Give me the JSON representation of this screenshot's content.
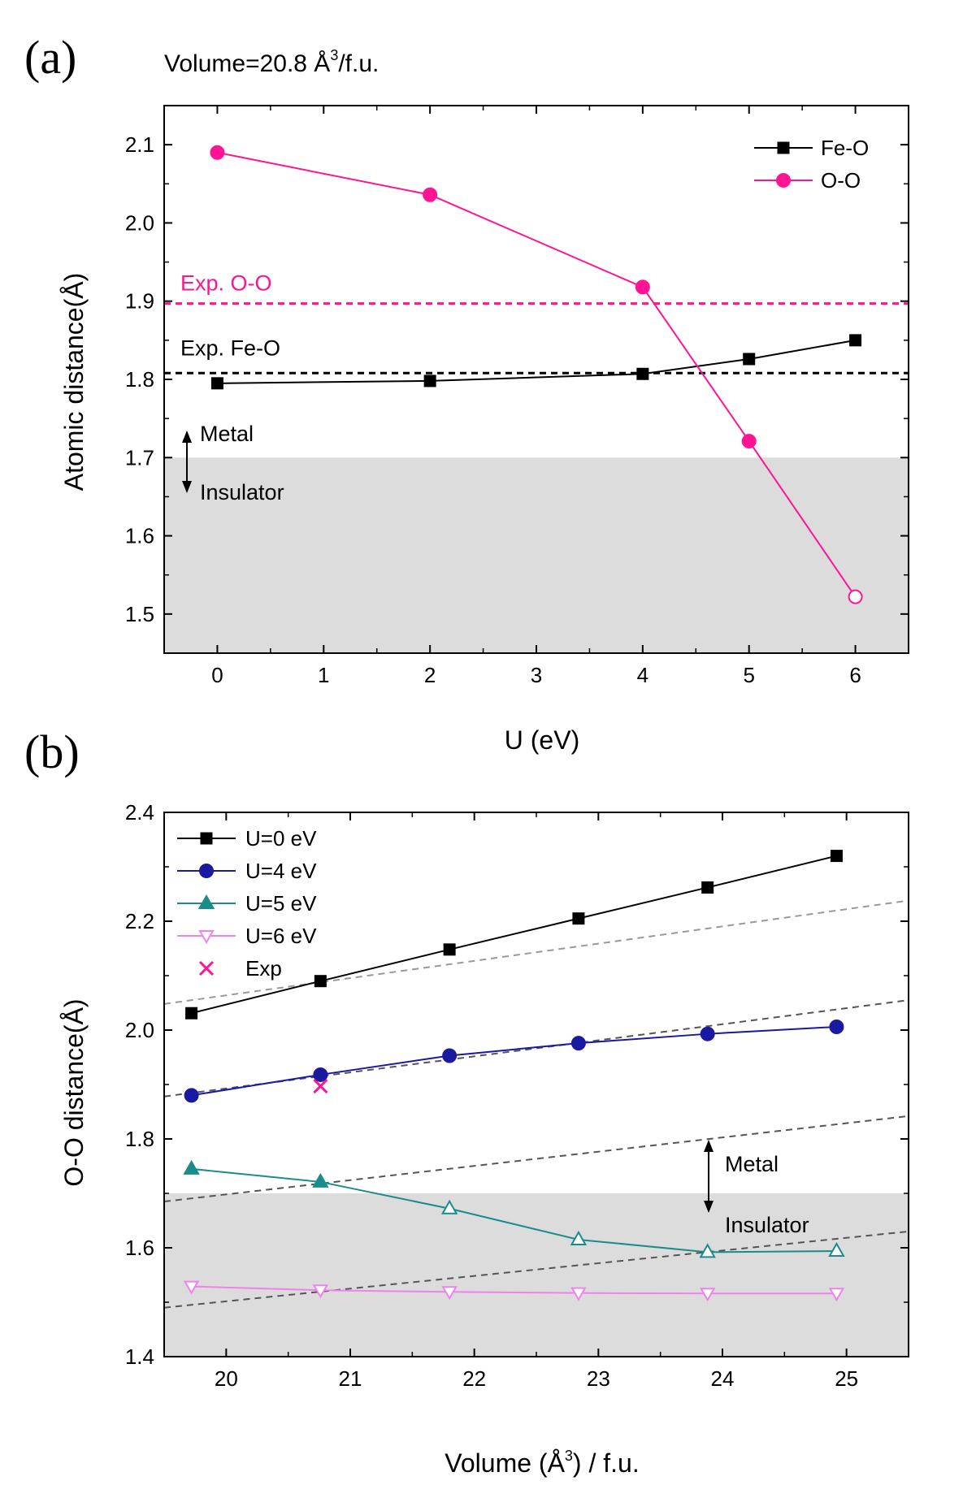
{
  "chart_data": [
    {
      "panel": "(a)",
      "type": "line",
      "subtitle_main": "Volume=20.8 Å",
      "subtitle_sup": "3",
      "subtitle_tail": "/f.u.",
      "xlabel": "U (eV)",
      "ylabel": "Atomic distance(Å)",
      "xlim": [
        -0.5,
        6.5
      ],
      "ylim": [
        1.45,
        2.15
      ],
      "xticks": [
        0,
        1,
        2,
        3,
        4,
        5,
        6
      ],
      "yticks": [
        "1.5",
        "1.6",
        "1.7",
        "1.8",
        "1.9",
        "2.0",
        "2.1"
      ],
      "shaded_region": {
        "from": 1.45,
        "to": 1.7,
        "color": "#dcdcdc"
      },
      "series": [
        {
          "name": "Fe-O",
          "color": "#000000",
          "marker": "square",
          "x": [
            0,
            2,
            4,
            5,
            6
          ],
          "y": [
            1.795,
            1.798,
            1.807,
            1.826,
            1.85
          ]
        },
        {
          "name": "O-O",
          "color": "#ff1493",
          "marker": "circle",
          "x": [
            0,
            2,
            4,
            5,
            6
          ],
          "y": [
            2.09,
            2.036,
            1.918,
            1.721,
            1.522
          ],
          "open_points": [
            4
          ]
        }
      ],
      "reference_lines": [
        {
          "label": "Exp. O-O",
          "y": 1.897,
          "color": "#ff1493"
        },
        {
          "label": "Exp. Fe-O",
          "y": 1.808,
          "color": "#000000"
        }
      ],
      "annotations": {
        "metal": "Metal",
        "insulator": "Insulator"
      }
    },
    {
      "panel": "(b)",
      "type": "line",
      "xlabel_main": "Volume (Å",
      "xlabel_sup": "3",
      "xlabel_tail": ") / f.u.",
      "ylabel": "O-O distance(Å)",
      "xlim": [
        19.5,
        25.5
      ],
      "ylim": [
        1.4,
        2.4
      ],
      "xticks": [
        20,
        21,
        22,
        23,
        24,
        25
      ],
      "yticks": [
        "1.4",
        "1.6",
        "1.8",
        "2.0",
        "2.2",
        "2.4"
      ],
      "shaded_region": {
        "from": 1.4,
        "to": 1.7,
        "color": "#dcdcdc"
      },
      "x": [
        19.72,
        20.76,
        21.8,
        22.84,
        23.88,
        24.92
      ],
      "series": [
        {
          "name": "U=0 eV",
          "color": "#000000",
          "marker": "square",
          "values": [
            2.031,
            2.09,
            2.148,
            2.205,
            2.262,
            2.32
          ]
        },
        {
          "name": "U=4 eV",
          "color": "#1a1aa0",
          "marker": "circle",
          "values": [
            1.88,
            1.918,
            1.953,
            1.976,
            1.993,
            2.006
          ]
        },
        {
          "name": "U=5 eV",
          "color": "#1a8c8c",
          "marker": "triangle-up",
          "values": [
            1.745,
            1.721,
            1.672,
            1.615,
            1.592,
            1.594
          ],
          "open_from_index": 2
        },
        {
          "name": "U=6 eV",
          "color": "#ee82ee",
          "marker": "triangle-down-open",
          "values": [
            1.529,
            1.522,
            1.519,
            1.517,
            1.516,
            1.516
          ]
        }
      ],
      "exp_point": {
        "name": "Exp",
        "x": 20.76,
        "y": 1.897,
        "color": "#ff1493",
        "marker": "x"
      },
      "guide_lines": [
        {
          "x": [
            19.5,
            25.5
          ],
          "y": [
            2.048,
            2.238
          ],
          "color": "#999999"
        },
        {
          "x": [
            19.5,
            25.5
          ],
          "y": [
            1.878,
            2.055
          ],
          "color": "#555555"
        },
        {
          "x": [
            19.5,
            25.5
          ],
          "y": [
            1.685,
            1.842
          ],
          "color": "#555555"
        },
        {
          "x": [
            19.5,
            25.5
          ],
          "y": [
            1.49,
            1.63
          ],
          "color": "#555555"
        }
      ],
      "annotations": {
        "metal": "Metal",
        "insulator": "Insulator"
      }
    }
  ]
}
